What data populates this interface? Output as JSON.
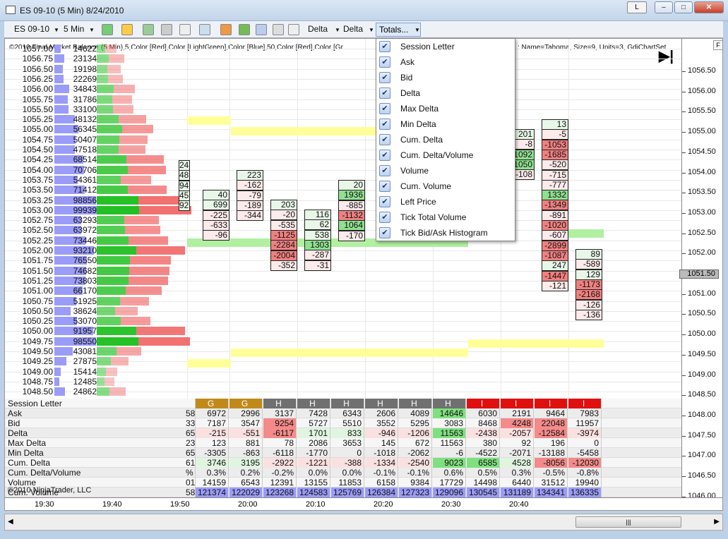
{
  "window": {
    "title": "ES 09-10 (5 Min)  8/24/2010",
    "btn_l": "L",
    "btn_min": "–",
    "btn_max": "□",
    "btn_close": "✕"
  },
  "toolbar": {
    "instrument": "ES 09-10",
    "interval": "5 Min",
    "delta1": "Delta",
    "delta2": "Delta",
    "totals": "Totals..."
  },
  "indicator_header": "(5 Min),5,Color [Red],Color [LightGreen],Color [Blue],50,Color [Red],Color [Gr",
  "indicator_header_right": ": Name=Tahoma, Size=9, Units=3, GdiChartSet",
  "indicator_badge": "©2010 Final Market Balance",
  "copyright": "©2010 NinjaTrader, LLC",
  "profile": [
    [
      "1057.00",
      "14622"
    ],
    [
      "1056.75",
      "23134"
    ],
    [
      "1056.50",
      "19198"
    ],
    [
      "1056.25",
      "22269"
    ],
    [
      "1056.00",
      "34843"
    ],
    [
      "1055.75",
      "31786"
    ],
    [
      "1055.50",
      "33100"
    ],
    [
      "1055.25",
      "48132"
    ],
    [
      "1055.00",
      "56345"
    ],
    [
      "1054.75",
      "50407"
    ],
    [
      "1054.50",
      "47518"
    ],
    [
      "1054.25",
      "68514"
    ],
    [
      "1054.00",
      "70706"
    ],
    [
      "1053.75",
      "54361"
    ],
    [
      "1053.50",
      "71412"
    ],
    [
      "1053.25",
      "98856"
    ],
    [
      "1053.00",
      "99939"
    ],
    [
      "1052.75",
      "63293"
    ],
    [
      "1052.50",
      "63972"
    ],
    [
      "1052.25",
      "73446"
    ],
    [
      "1052.00",
      "93210"
    ],
    [
      "1051.75",
      "76550"
    ],
    [
      "1051.50",
      "74682"
    ],
    [
      "1051.25",
      "73803"
    ],
    [
      "1051.00",
      "66170"
    ],
    [
      "1050.75",
      "51925"
    ],
    [
      "1050.50",
      "38624"
    ],
    [
      "1050.25",
      "53070"
    ],
    [
      "1050.00",
      "91957"
    ],
    [
      "1049.75",
      "98550"
    ],
    [
      "1049.50",
      "43081"
    ],
    [
      "1049.25",
      "27875"
    ],
    [
      "1049.00",
      "15414"
    ],
    [
      "1048.75",
      "12485"
    ],
    [
      "1048.50",
      "24862"
    ]
  ],
  "right_axis": [
    "1056.50",
    "1056.00",
    "1055.50",
    "1055.00",
    "1054.50",
    "1054.00",
    "1053.50",
    "1053.00",
    "1052.50",
    "1052.00",
    "1051.50",
    "1051.00",
    "1050.50",
    "1050.00",
    "1049.50",
    "1049.00",
    "1048.50",
    "1048.00",
    "1047.50",
    "1047.00",
    "1046.50",
    "1046.00"
  ],
  "current_price": "1051.50",
  "time_axis": [
    "19:30",
    "19:40",
    "19:50",
    "20:00",
    "20:10",
    "20:20",
    "20:30",
    "20:40"
  ],
  "bar_cells": [
    {
      "col": 0,
      "vals": [
        "24",
        "48",
        "94",
        "45",
        "92"
      ]
    },
    {
      "col": 1,
      "vals": [
        "40",
        "699",
        "-225",
        "-633",
        "-96"
      ]
    },
    {
      "col": 2,
      "vals": [
        "223",
        "-162",
        "-79",
        "-189",
        "-344"
      ]
    },
    {
      "col": 3,
      "vals": [
        "203",
        "-20",
        "-535",
        "-1125",
        "-2284",
        "-2004",
        "-352"
      ]
    },
    {
      "col": 4,
      "vals": [
        "116",
        "62",
        "538",
        "1303",
        "-287",
        "-31"
      ]
    },
    {
      "col": 5,
      "vals": [
        "20",
        "1936",
        "-885",
        "-1132",
        "1064",
        "-170"
      ]
    },
    {
      "col": 10,
      "vals": [
        "201",
        "-8",
        "1092",
        "1050",
        "-108"
      ]
    },
    {
      "col": 11,
      "vals": [
        "13",
        "-5",
        "-1053",
        "-1685",
        "-520",
        "-715",
        "-777",
        "1332",
        "-1349",
        "-891",
        "-1020",
        "-607",
        "-2899",
        "-1087",
        "247",
        "-1447",
        "-121"
      ]
    },
    {
      "col": 12,
      "vals": [
        "89",
        "-589",
        "129",
        "-1173",
        "-2168",
        "-126",
        "-136"
      ]
    }
  ],
  "table": {
    "rows": [
      "Session Letter",
      "Ask",
      "Bid",
      "Delta",
      "Max Delta",
      "Min Delta",
      "Cum. Delta",
      "Cum. Delta/Volume",
      "Volume",
      "Cum. Volume"
    ],
    "partial": [
      "",
      "58",
      "33",
      "65",
      "23",
      "65",
      "61",
      "%",
      "01",
      "58"
    ],
    "columns": [
      [
        "G",
        "6972",
        "7187",
        "-215",
        "123",
        "-3305",
        "3746",
        "0.3%",
        "14159",
        "121374"
      ],
      [
        "G",
        "2996",
        "3547",
        "-551",
        "881",
        "-863",
        "3195",
        "0.2%",
        "6543",
        "122029"
      ],
      [
        "H",
        "3137",
        "9254",
        "-6117",
        "78",
        "-6118",
        "-2922",
        "-0.2%",
        "12391",
        "123268"
      ],
      [
        "H",
        "7428",
        "5727",
        "1701",
        "2086",
        "-1770",
        "-1221",
        "0.0%",
        "13155",
        "124583"
      ],
      [
        "H",
        "6343",
        "5510",
        "833",
        "3653",
        "0",
        "-388",
        "0.0%",
        "11853",
        "125769"
      ],
      [
        "H",
        "2606",
        "3552",
        "-946",
        "145",
        "-1018",
        "-1334",
        "-0.1%",
        "6158",
        "126384"
      ],
      [
        "H",
        "4089",
        "5295",
        "-1206",
        "672",
        "-2062",
        "-2540",
        "-0.1%",
        "9384",
        "127323"
      ],
      [
        "H",
        "14646",
        "3083",
        "11563",
        "11563",
        "-6",
        "9023",
        "0.6%",
        "17729",
        "129096"
      ],
      [
        "I",
        "6030",
        "8468",
        "-2438",
        "380",
        "-4522",
        "6585",
        "0.5%",
        "14498",
        "130545"
      ],
      [
        "I",
        "2191",
        "4248",
        "-2057",
        "92",
        "-2071",
        "4528",
        "0.3%",
        "6440",
        "131189"
      ],
      [
        "I",
        "9464",
        "22048",
        "-12584",
        "196",
        "-13188",
        "-8056",
        "-0.5%",
        "31512",
        "134341"
      ],
      [
        "I",
        "7983",
        "11957",
        "-3974",
        "0",
        "-5458",
        "-12030",
        "-0.8%",
        "19940",
        "136335"
      ]
    ]
  },
  "dropdown": [
    "Session Letter",
    "Ask",
    "Bid",
    "Delta",
    "Max Delta",
    "Min Delta",
    "Cum. Delta",
    "Cum. Delta/Volume",
    "Volume",
    "Cum. Volume",
    "Left Price",
    "Tick Total Volume",
    "Tick Bid/Ask Histogram"
  ],
  "check_glyph": "✔",
  "colors": {
    "session_G": "#c08a1a",
    "session_H": "#707070",
    "session_I": "#e01010",
    "volume_bar": "#9a9cf7",
    "buy": "#22c022",
    "sell": "#f06060",
    "band_yellow": "#ffff99",
    "band_green": "#b0f0a0"
  }
}
